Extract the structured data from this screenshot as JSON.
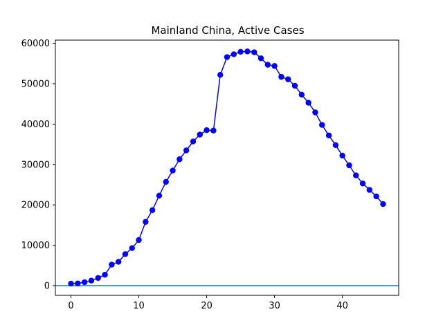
{
  "chart_data": {
    "type": "line",
    "title": "Mainland China, Active Cases",
    "xlabel": "",
    "ylabel": "",
    "xlim": [
      -2.3,
      48.3
    ],
    "ylim": [
      -2400,
      60800
    ],
    "xticks": [
      0,
      10,
      20,
      30,
      40
    ],
    "yticks": [
      0,
      10000,
      20000,
      30000,
      40000,
      50000,
      60000
    ],
    "grid": false,
    "colors": {
      "series": "#0000ff",
      "baseline": "#1f77b4"
    },
    "baseline_y": 0,
    "series": [
      {
        "x": [
          0,
          1,
          2,
          3,
          4,
          5,
          6,
          7,
          8,
          9,
          10,
          11,
          12,
          13,
          14,
          15,
          16,
          17,
          18,
          19,
          20,
          21,
          22,
          23,
          24,
          25,
          26,
          27,
          28,
          29,
          30,
          31,
          32,
          33,
          34,
          35,
          36,
          37,
          38,
          39,
          40,
          41,
          42,
          43,
          44,
          45,
          46
        ],
        "values": [
          500,
          550,
          850,
          1250,
          1900,
          2700,
          5200,
          5900,
          7800,
          9300,
          11300,
          15800,
          18700,
          22300,
          25700,
          28500,
          31300,
          33500,
          35700,
          37400,
          38500,
          38400,
          52200,
          56600,
          57300,
          57900,
          58000,
          57800,
          56300,
          54700,
          54400,
          51700,
          51100,
          49500,
          47300,
          45300,
          42900,
          39800,
          37200,
          34800,
          32200,
          29800,
          27300,
          25300,
          23700,
          22100,
          20200
        ]
      }
    ]
  }
}
